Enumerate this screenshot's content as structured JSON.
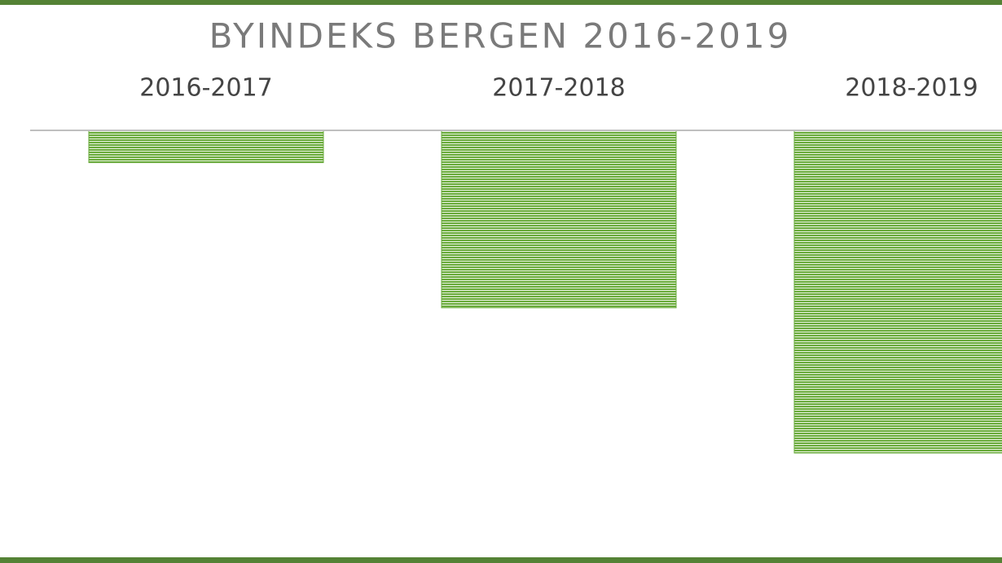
{
  "chart_data": {
    "type": "bar",
    "title": "BYINDEKS BERGEN 2016-2019",
    "categories": [
      "2016-2017",
      "2017-2018",
      "2018-2019"
    ],
    "values": [
      -0.6,
      -3.3,
      -6.0
    ],
    "color": "#6aab3c",
    "ylim": [
      -7.5,
      0
    ]
  }
}
